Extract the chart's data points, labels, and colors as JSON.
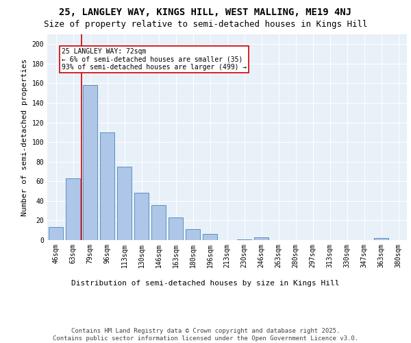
{
  "title_line1": "25, LANGLEY WAY, KINGS HILL, WEST MALLING, ME19 4NJ",
  "title_line2": "Size of property relative to semi-detached houses in Kings Hill",
  "xlabel": "Distribution of semi-detached houses by size in Kings Hill",
  "ylabel": "Number of semi-detached properties",
  "categories": [
    "46sqm",
    "63sqm",
    "79sqm",
    "96sqm",
    "113sqm",
    "130sqm",
    "146sqm",
    "163sqm",
    "180sqm",
    "196sqm",
    "213sqm",
    "230sqm",
    "246sqm",
    "263sqm",
    "280sqm",
    "297sqm",
    "313sqm",
    "330sqm",
    "347sqm",
    "363sqm",
    "380sqm"
  ],
  "values": [
    13,
    63,
    158,
    110,
    75,
    48,
    36,
    23,
    11,
    6,
    0,
    1,
    3,
    0,
    0,
    0,
    0,
    0,
    0,
    2,
    0
  ],
  "bar_color": "#aec6e8",
  "bar_edge_color": "#5a8fc2",
  "background_color": "#e8f0f8",
  "grid_color": "#ffffff",
  "vline_color": "#cc0000",
  "annotation_text": "25 LANGLEY WAY: 72sqm\n← 6% of semi-detached houses are smaller (35)\n93% of semi-detached houses are larger (499) →",
  "annotation_box_color": "#ffffff",
  "annotation_box_edge": "#cc0000",
  "ylim": [
    0,
    210
  ],
  "yticks": [
    0,
    20,
    40,
    60,
    80,
    100,
    120,
    140,
    160,
    180,
    200
  ],
  "footnote": "Contains HM Land Registry data © Crown copyright and database right 2025.\nContains public sector information licensed under the Open Government Licence v3.0.",
  "title_fontsize": 10,
  "subtitle_fontsize": 9,
  "axis_label_fontsize": 8,
  "tick_fontsize": 7,
  "annotation_fontsize": 7,
  "footnote_fontsize": 6.5
}
